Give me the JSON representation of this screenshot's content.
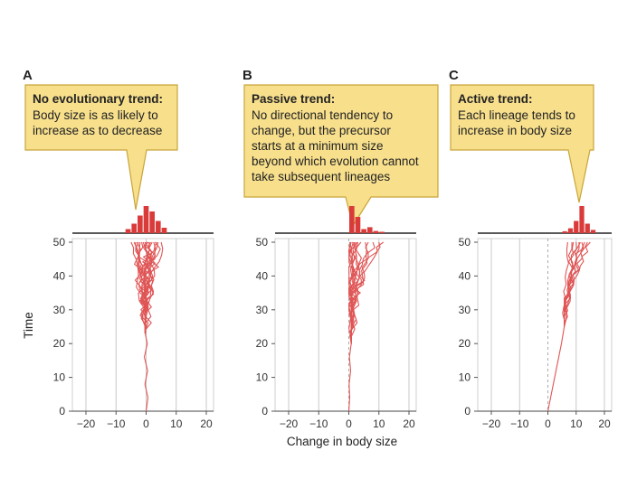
{
  "figure": {
    "xlabel": "Change in body size",
    "ylabel": "Time",
    "xticks": [
      -20,
      -10,
      0,
      10,
      20
    ],
    "yticks": [
      0,
      10,
      20,
      30,
      40,
      50
    ],
    "colors": {
      "lineage": "#e05555",
      "bar": "#d93a3a",
      "callout_fill": "#f7df8c",
      "callout_stroke": "#c9a53a",
      "grid": "#c8c8c8"
    }
  },
  "chart_data": [
    {
      "type": "line",
      "panel": "A",
      "callout": {
        "title": "No evolutionary trend:",
        "lines": [
          "Body size is as likely to",
          "increase as to decrease"
        ]
      },
      "xlabel": "",
      "ylabel": "Time",
      "xlim": [
        -20,
        20
      ],
      "ylim": [
        0,
        50
      ],
      "grid": "vertical lines at x ticks",
      "histogram": {
        "centers": [
          -6,
          -4,
          -2,
          0,
          2,
          4,
          6
        ],
        "heights": [
          0.15,
          0.35,
          0.65,
          1.0,
          0.8,
          0.45,
          0.2
        ]
      },
      "trunk": [
        [
          0,
          0
        ],
        [
          0.6,
          4
        ],
        [
          -0.4,
          8
        ],
        [
          0.5,
          12
        ],
        [
          -0.6,
          16
        ],
        [
          0.4,
          20
        ],
        [
          -0.3,
          23
        ]
      ],
      "lineages": [
        {
          "split": 23,
          "end": -4.0,
          "jitter": 0.9
        },
        {
          "split": 24,
          "end": -3.0,
          "jitter": 1.0
        },
        {
          "split": 25,
          "end": -2.0,
          "jitter": 0.8
        },
        {
          "split": 24,
          "end": -1.0,
          "jitter": 1.1
        },
        {
          "split": 26,
          "end": 0.0,
          "jitter": 0.9
        },
        {
          "split": 25,
          "end": 1.0,
          "jitter": 1.0
        },
        {
          "split": 27,
          "end": 2.0,
          "jitter": 0.8
        },
        {
          "split": 26,
          "end": 3.0,
          "jitter": 1.0
        },
        {
          "split": 28,
          "end": 4.0,
          "jitter": 0.9
        },
        {
          "split": 27,
          "end": 5.0,
          "jitter": 0.8
        },
        {
          "split": 30,
          "end": -5.0,
          "jitter": 0.7
        },
        {
          "split": 29,
          "end": -2.5,
          "jitter": 1.0
        },
        {
          "split": 31,
          "end": 0.5,
          "jitter": 0.9
        },
        {
          "split": 30,
          "end": 2.5,
          "jitter": 1.0
        },
        {
          "split": 32,
          "end": -1.5,
          "jitter": 0.9
        },
        {
          "split": 33,
          "end": 1.5,
          "jitter": 0.8
        },
        {
          "split": 34,
          "end": -3.5,
          "jitter": 0.8
        },
        {
          "split": 35,
          "end": 3.5,
          "jitter": 0.7
        },
        {
          "split": 36,
          "end": -0.5,
          "jitter": 0.9
        },
        {
          "split": 37,
          "end": 0.8,
          "jitter": 0.8
        }
      ]
    },
    {
      "type": "line",
      "panel": "B",
      "callout": {
        "title": "Passive trend:",
        "lines": [
          "No directional tendency to",
          "change, but the precursor",
          "starts at a minimum size",
          "beyond which evolution cannot",
          "take subsequent lineages"
        ]
      },
      "xlabel": "Change in body size",
      "ylabel": "",
      "xlim": [
        -20,
        20
      ],
      "ylim": [
        0,
        50
      ],
      "grid": "vertical lines at x ticks",
      "boundary_x": 0,
      "histogram": {
        "centers": [
          1,
          3,
          5,
          7,
          9,
          11
        ],
        "heights": [
          1.0,
          0.6,
          0.15,
          0.22,
          0.08,
          0.05
        ]
      },
      "trunk": [
        [
          0,
          0
        ],
        [
          0.3,
          4
        ],
        [
          0.1,
          8
        ],
        [
          0.6,
          12
        ],
        [
          0.2,
          16
        ],
        [
          0.8,
          20
        ]
      ],
      "lineages": [
        {
          "split": 20,
          "end": 0.3,
          "jitter": 0.5
        },
        {
          "split": 21,
          "end": 0.8,
          "jitter": 0.6
        },
        {
          "split": 22,
          "end": 1.5,
          "jitter": 0.8
        },
        {
          "split": 23,
          "end": 2.2,
          "jitter": 0.8
        },
        {
          "split": 22,
          "end": 3.0,
          "jitter": 0.9
        },
        {
          "split": 24,
          "end": 4.0,
          "jitter": 0.9
        },
        {
          "split": 25,
          "end": 5.5,
          "jitter": 0.9
        },
        {
          "split": 26,
          "end": 0.5,
          "jitter": 0.5
        },
        {
          "split": 28,
          "end": 1.2,
          "jitter": 0.7
        },
        {
          "split": 27,
          "end": 2.8,
          "jitter": 0.9
        },
        {
          "split": 30,
          "end": 8.0,
          "jitter": 0.9
        },
        {
          "split": 32,
          "end": 10.0,
          "jitter": 0.9
        },
        {
          "split": 33,
          "end": 11.5,
          "jitter": 0.8
        },
        {
          "split": 31,
          "end": 6.5,
          "jitter": 0.8
        },
        {
          "split": 35,
          "end": 1.8,
          "jitter": 0.8
        }
      ]
    },
    {
      "type": "line",
      "panel": "C",
      "callout": {
        "title": "Active trend:",
        "lines": [
          "Each lineage tends to",
          "increase in body size"
        ]
      },
      "xlabel": "",
      "ylabel": "",
      "xlim": [
        -20,
        20
      ],
      "ylim": [
        0,
        50
      ],
      "grid": "vertical lines at x ticks",
      "boundary_x": 0,
      "histogram": {
        "centers": [
          6,
          8,
          10,
          12,
          14,
          16
        ],
        "heights": [
          0.07,
          0.18,
          0.45,
          1.0,
          0.35,
          0.12
        ]
      },
      "trunk": [
        [
          0,
          0
        ],
        [
          1.2,
          5
        ],
        [
          2.4,
          10
        ],
        [
          3.6,
          15
        ],
        [
          4.8,
          20
        ],
        [
          5.8,
          25
        ]
      ],
      "lineages": [
        {
          "split": 25,
          "end": 7.0,
          "jitter": 0.5
        },
        {
          "split": 26,
          "end": 8.5,
          "jitter": 0.5
        },
        {
          "split": 27,
          "end": 10.0,
          "jitter": 0.5
        },
        {
          "split": 28,
          "end": 11.0,
          "jitter": 0.5
        },
        {
          "split": 29,
          "end": 12.0,
          "jitter": 0.6
        },
        {
          "split": 30,
          "end": 13.0,
          "jitter": 0.5
        },
        {
          "split": 31,
          "end": 14.0,
          "jitter": 0.5
        },
        {
          "split": 27,
          "end": 9.0,
          "jitter": 0.5
        },
        {
          "split": 32,
          "end": 11.5,
          "jitter": 0.6
        },
        {
          "split": 33,
          "end": 15.0,
          "jitter": 0.5
        }
      ]
    }
  ]
}
